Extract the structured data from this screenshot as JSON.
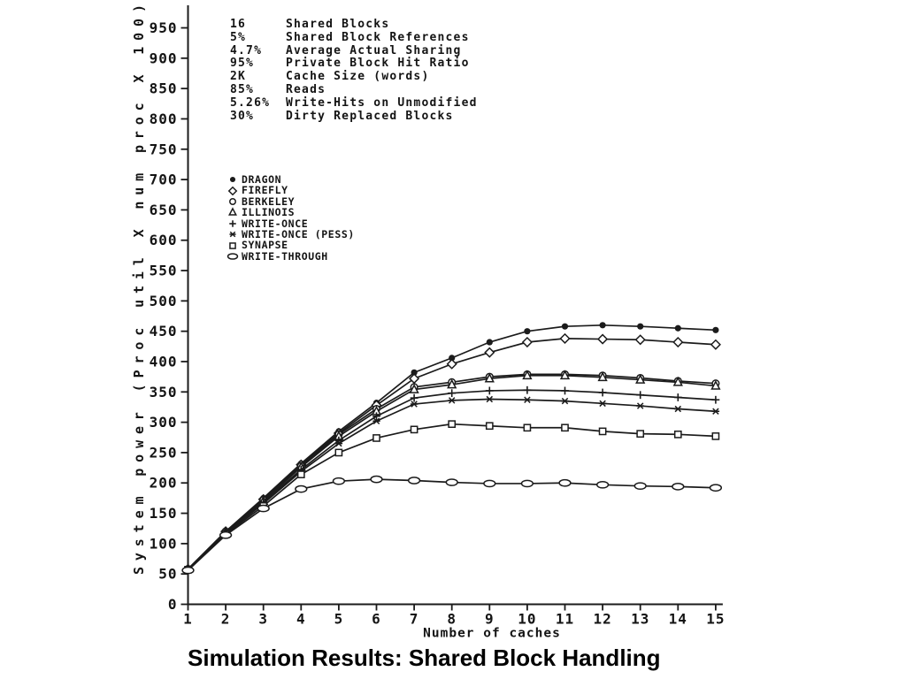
{
  "page": {
    "background": "#ffffff",
    "ink_color": "#1b1b1b",
    "caption": "Simulation Results: Shared Block Handling"
  },
  "parameters": {
    "rows": [
      {
        "value": "16",
        "label": "Shared Blocks"
      },
      {
        "value": "5%",
        "label": "Shared Block References"
      },
      {
        "value": "4.7%",
        "label": "Average Actual Sharing"
      },
      {
        "value": "95%",
        "label": "Private Block Hit Ratio"
      },
      {
        "value": "2K",
        "label": "Cache Size (words)"
      },
      {
        "value": "85%",
        "label": "Reads"
      },
      {
        "value": "5.26%",
        "label": "Write-Hits on Unmodified"
      },
      {
        "value": "30%",
        "label": "Dirty Replaced Blocks"
      }
    ]
  },
  "chart_data": {
    "type": "line",
    "title": "",
    "xlabel": "Number of caches",
    "ylabel": "System power (Proc util X num proc X 100)",
    "x": [
      1,
      2,
      3,
      4,
      5,
      6,
      7,
      8,
      9,
      10,
      11,
      12,
      13,
      14,
      15
    ],
    "xlim": [
      1,
      15
    ],
    "ylim": [
      0,
      950
    ],
    "y_tick_step": 50,
    "grid": false,
    "legend_position": "upper-left-inside",
    "series": [
      {
        "name": "DRAGON",
        "marker": "filled-dot",
        "values": [
          58,
          120,
          175,
          232,
          285,
          332,
          382,
          406,
          432,
          450,
          458,
          460,
          458,
          455,
          452
        ]
      },
      {
        "name": "FIREFLY",
        "marker": "open-diamond",
        "values": [
          58,
          120,
          173,
          230,
          282,
          328,
          372,
          396,
          415,
          432,
          438,
          437,
          436,
          432,
          428
        ]
      },
      {
        "name": "BERKELEY",
        "marker": "open-circle",
        "values": [
          58,
          120,
          172,
          228,
          280,
          322,
          358,
          366,
          375,
          379,
          379,
          377,
          373,
          368,
          364
        ]
      },
      {
        "name": "ILLINOIS",
        "marker": "open-triangle",
        "values": [
          58,
          119,
          170,
          226,
          277,
          318,
          354,
          362,
          372,
          377,
          377,
          374,
          370,
          366,
          360
        ]
      },
      {
        "name": "WRITE-ONCE",
        "marker": "plus",
        "values": [
          57,
          118,
          168,
          222,
          270,
          310,
          340,
          348,
          352,
          353,
          352,
          349,
          345,
          341,
          337
        ]
      },
      {
        "name": "WRITE-ONCE (PESS)",
        "marker": "star",
        "values": [
          57,
          117,
          166,
          219,
          265,
          302,
          330,
          336,
          338,
          337,
          335,
          331,
          327,
          322,
          318
        ]
      },
      {
        "name": "SYNAPSE",
        "marker": "open-square",
        "values": [
          57,
          116,
          162,
          214,
          250,
          274,
          288,
          297,
          294,
          291,
          291,
          285,
          281,
          280,
          277
        ]
      },
      {
        "name": "WRITE-THROUGH",
        "marker": "open-ellipse",
        "values": [
          56,
          114,
          158,
          190,
          203,
          206,
          204,
          201,
          199,
          199,
          200,
          197,
          195,
          194,
          192
        ]
      }
    ]
  }
}
